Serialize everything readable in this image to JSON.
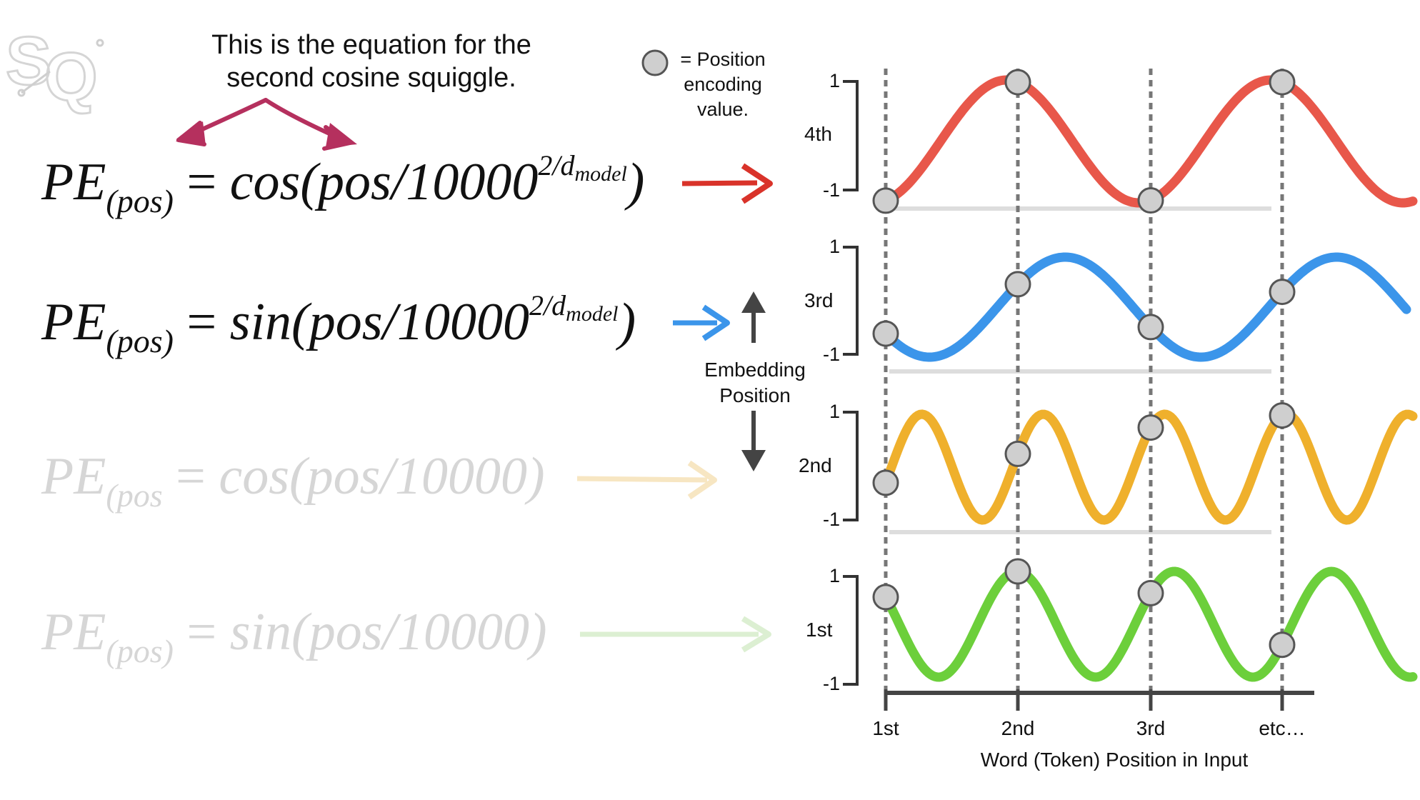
{
  "callout": {
    "line1": "This is the equation for the",
    "line2": "second cosine squiggle."
  },
  "equations": [
    {
      "lhs": "PE",
      "sub": "(pos)",
      "eq": " = ",
      "fn": "cos",
      "arg": "(pos/10000",
      "exp": "2/d",
      "expsub": "model",
      "close": ")"
    },
    {
      "lhs": "PE",
      "sub": "(pos)",
      "eq": " = ",
      "fn": "sin",
      "arg": "(pos/10000",
      "exp": "2/d",
      "expsub": "model",
      "close": ")"
    },
    {
      "lhs": "PE",
      "sub": "(pos",
      "eq": " = ",
      "fn": "cos",
      "arg": "(pos/10000)"
    },
    {
      "lhs": "PE",
      "sub": "(pos)",
      "eq": " = ",
      "fn": "sin",
      "arg": "(pos/10000)"
    }
  ],
  "legend": {
    "line1": "= Position",
    "line2": "encoding",
    "line3": "value."
  },
  "embedding": {
    "line1": "Embedding",
    "line2": "Position"
  },
  "rows": [
    {
      "label": "4th",
      "color": "#e8574a",
      "y_max": "1",
      "y_min": "-1"
    },
    {
      "label": "3rd",
      "color": "#3b95ea",
      "y_max": "1",
      "y_min": "-1"
    },
    {
      "label": "2nd",
      "color": "#efb02c",
      "y_max": "1",
      "y_min": "-1"
    },
    {
      "label": "1st",
      "color": "#6ccf3b",
      "y_max": "1",
      "y_min": "-1"
    }
  ],
  "x_ticks": [
    "1st",
    "2nd",
    "3rd",
    "etc…"
  ],
  "x_label": "Word (Token) Position in Input"
}
